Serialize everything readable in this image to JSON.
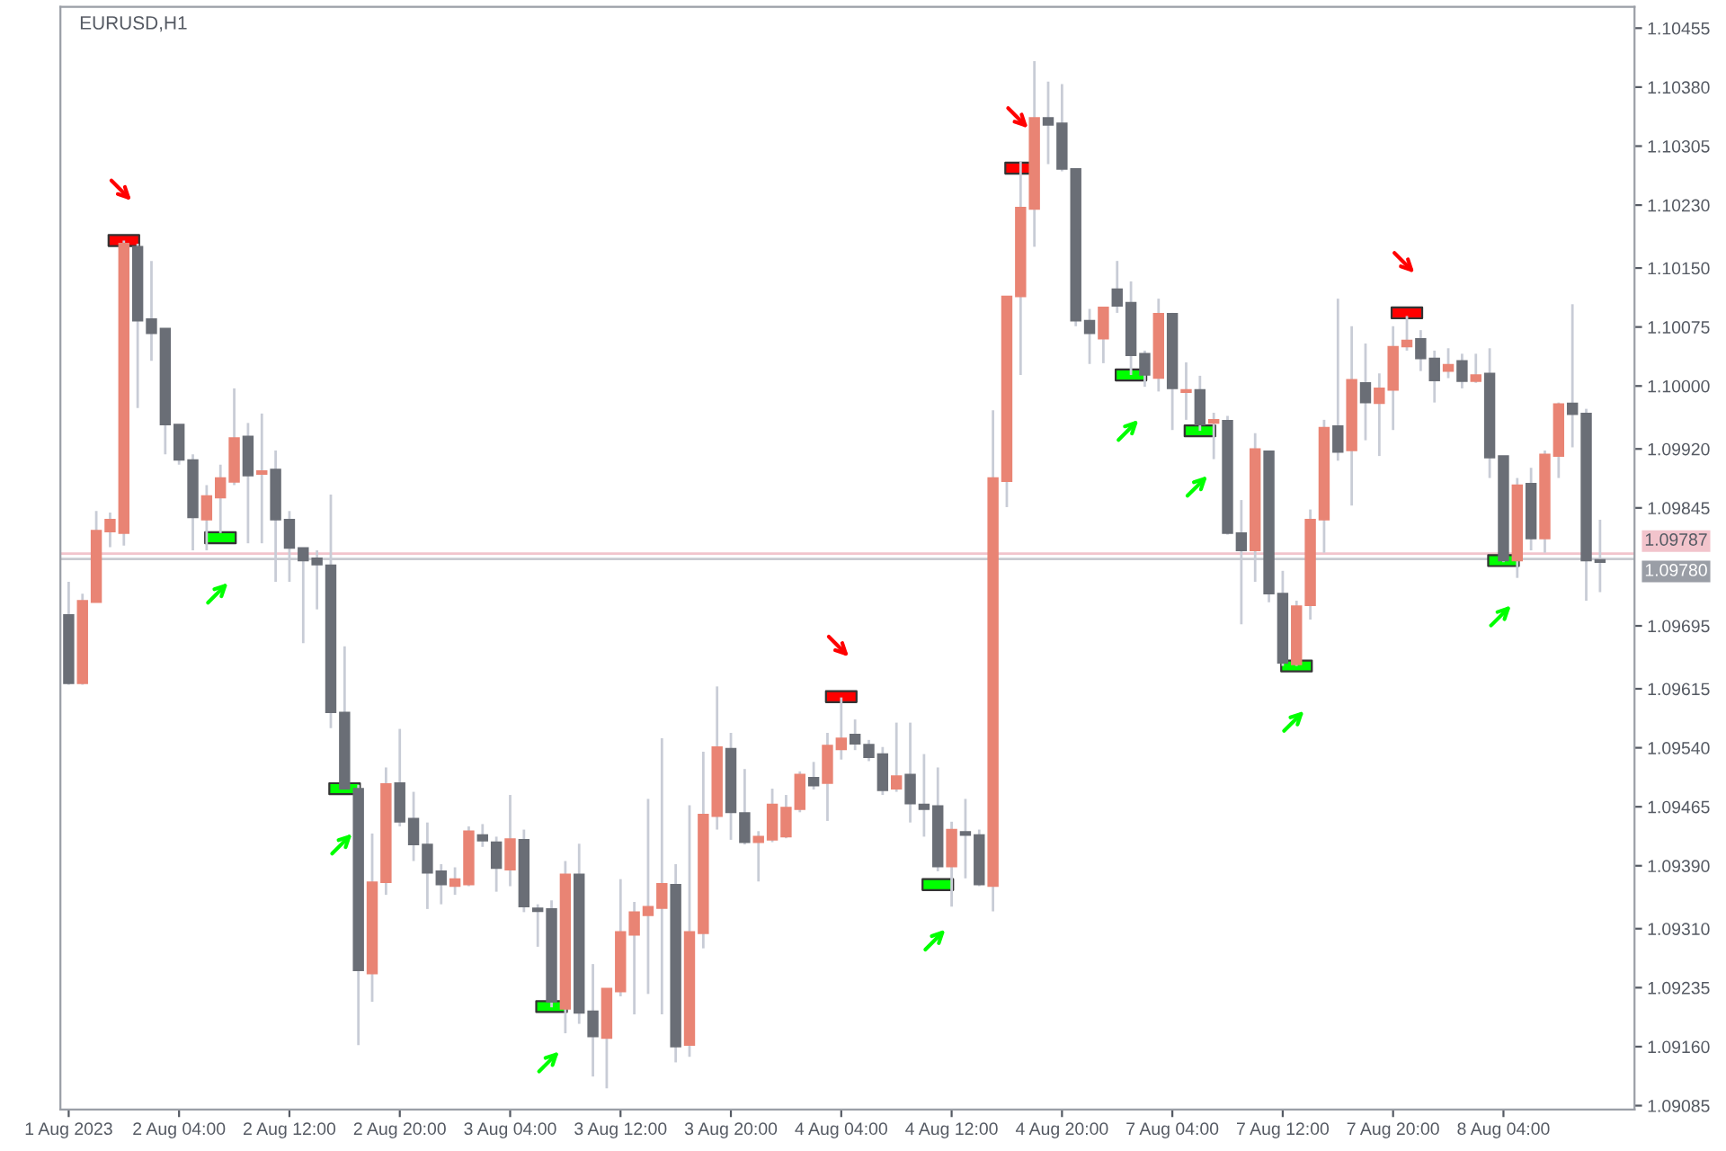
{
  "chart_data": {
    "type": "candlestick",
    "title": "EURUSD,H1",
    "categories": [
      "1 Aug 2023",
      null,
      null,
      null,
      null,
      null,
      null,
      null,
      "2 Aug 04:00",
      null,
      null,
      null,
      null,
      null,
      null,
      null,
      "2 Aug 12:00",
      null,
      null,
      null,
      null,
      null,
      null,
      null,
      "2 Aug 20:00",
      null,
      null,
      null,
      null,
      null,
      null,
      null,
      "3 Aug 04:00",
      null,
      null,
      null,
      null,
      null,
      null,
      null,
      "3 Aug 12:00",
      null,
      null,
      null,
      null,
      null,
      null,
      null,
      "3 Aug 20:00",
      null,
      null,
      null,
      null,
      null,
      null,
      null,
      "4 Aug 04:00",
      null,
      null,
      null,
      null,
      null,
      null,
      null,
      "4 Aug 12:00",
      null,
      null,
      null,
      null,
      null,
      null,
      null,
      "4 Aug 20:00",
      null,
      null,
      null,
      null,
      null,
      null,
      null,
      "7 Aug 04:00",
      null,
      null,
      null,
      null,
      null,
      null,
      null,
      "7 Aug 12:00",
      null,
      null,
      null,
      null,
      null,
      null,
      null,
      "7 Aug 20:00",
      null,
      null,
      null,
      null,
      null,
      null,
      null,
      "8 Aug 04:00",
      null,
      null,
      null,
      null,
      null,
      null,
      null
    ],
    "ohlc": [
      [
        1.09709,
        1.09751,
        1.0962,
        1.09622
      ],
      [
        1.09622,
        1.09736,
        1.0962,
        1.09727
      ],
      [
        1.09725,
        1.09841,
        1.09725,
        1.09816
      ],
      [
        1.09815,
        1.09839,
        1.09795,
        1.0983
      ],
      [
        1.09813,
        1.10185,
        1.09797,
        1.10181
      ],
      [
        1.10177,
        1.10181,
        1.09972,
        1.10083
      ],
      [
        1.10085,
        1.10159,
        1.10032,
        1.10067
      ],
      [
        1.10073,
        1.10073,
        1.09913,
        1.09951
      ],
      [
        1.09951,
        1.09951,
        1.099,
        1.09906
      ],
      [
        1.09906,
        1.09913,
        1.09791,
        1.09833
      ],
      [
        1.0983,
        1.09874,
        1.09791,
        1.0986
      ],
      [
        1.09858,
        1.099,
        1.09813,
        1.09883
      ],
      [
        1.09878,
        1.09997,
        1.09874,
        1.09934
      ],
      [
        1.09936,
        1.09953,
        1.098,
        1.09886
      ],
      [
        1.09888,
        1.09965,
        1.098,
        1.09892
      ],
      [
        1.09894,
        1.09918,
        1.09751,
        1.0983
      ],
      [
        1.0983,
        1.09841,
        1.09751,
        1.09794
      ],
      [
        1.09794,
        1.09794,
        1.09673,
        1.09778
      ],
      [
        1.09781,
        1.09791,
        1.09716,
        1.09773
      ],
      [
        1.09772,
        1.09862,
        1.09565,
        1.09585
      ],
      [
        1.09585,
        1.09669,
        1.09488,
        1.09488
      ],
      [
        1.09488,
        1.09493,
        1.09162,
        1.09257
      ],
      [
        1.09253,
        1.09431,
        1.09217,
        1.09369
      ],
      [
        1.09369,
        1.09515,
        1.09353,
        1.09494
      ],
      [
        1.09495,
        1.09564,
        1.0944,
        1.09446
      ],
      [
        1.0945,
        1.09484,
        1.09396,
        1.09417
      ],
      [
        1.09417,
        1.09445,
        1.09335,
        1.09381
      ],
      [
        1.09383,
        1.09392,
        1.09341,
        1.09366
      ],
      [
        1.09364,
        1.09388,
        1.09353,
        1.09373
      ],
      [
        1.09366,
        1.0944,
        1.09364,
        1.09434
      ],
      [
        1.09429,
        1.09443,
        1.09414,
        1.09422
      ],
      [
        1.0942,
        1.09427,
        1.09357,
        1.09387
      ],
      [
        1.09385,
        1.0948,
        1.09364,
        1.09424
      ],
      [
        1.09423,
        1.09436,
        1.09331,
        1.09338
      ],
      [
        1.09336,
        1.09341,
        1.09287,
        1.09332
      ],
      [
        1.09335,
        1.09346,
        1.0921,
        1.09217
      ],
      [
        1.09208,
        1.09396,
        1.09177,
        1.09379
      ],
      [
        1.09379,
        1.09418,
        1.09189,
        1.09203
      ],
      [
        1.09205,
        1.09265,
        1.09122,
        1.09173
      ],
      [
        1.09171,
        1.09234,
        1.09107,
        1.09234
      ],
      [
        1.0923,
        1.09373,
        1.09224,
        1.09306
      ],
      [
        1.09302,
        1.09344,
        1.09201,
        1.09331
      ],
      [
        1.09327,
        1.09475,
        1.09227,
        1.09338
      ],
      [
        1.09336,
        1.09552,
        1.09201,
        1.09367
      ],
      [
        1.09366,
        1.09392,
        1.0914,
        1.0916
      ],
      [
        1.09162,
        1.09467,
        1.09147,
        1.09306
      ],
      [
        1.09304,
        1.09535,
        1.09285,
        1.09455
      ],
      [
        1.09453,
        1.09618,
        1.09436,
        1.09541
      ],
      [
        1.09539,
        1.09559,
        1.09423,
        1.09458
      ],
      [
        1.09457,
        1.09513,
        1.09417,
        1.0942
      ],
      [
        1.0942,
        1.09434,
        1.0937,
        1.09427
      ],
      [
        1.09423,
        1.09488,
        1.0942,
        1.09468
      ],
      [
        1.09427,
        1.0948,
        1.09425,
        1.09464
      ],
      [
        1.09462,
        1.0951,
        1.09458,
        1.09506
      ],
      [
        1.09502,
        1.09522,
        1.09487,
        1.09492
      ],
      [
        1.09495,
        1.09559,
        1.09447,
        1.09543
      ],
      [
        1.09538,
        1.09604,
        1.09525,
        1.09552
      ],
      [
        1.09557,
        1.09576,
        1.09537,
        1.09545
      ],
      [
        1.09544,
        1.0955,
        1.09523,
        1.09528
      ],
      [
        1.09532,
        1.09541,
        1.0948,
        1.09486
      ],
      [
        1.09488,
        1.09572,
        1.09484,
        1.09504
      ],
      [
        1.09506,
        1.09572,
        1.09445,
        1.09469
      ],
      [
        1.09468,
        1.09532,
        1.09427,
        1.09462
      ],
      [
        1.09466,
        1.09515,
        1.09383,
        1.09389
      ],
      [
        1.09389,
        1.09446,
        1.09338,
        1.09436
      ],
      [
        1.09433,
        1.09475,
        1.09374,
        1.09429
      ],
      [
        1.09429,
        1.09436,
        1.09364,
        1.09366
      ],
      [
        1.09364,
        1.09969,
        1.09332,
        1.09883
      ],
      [
        1.09879,
        1.10114,
        1.09846,
        1.10114
      ],
      [
        1.10114,
        1.10286,
        1.10014,
        1.10227
      ],
      [
        1.10225,
        1.10413,
        1.10177,
        1.10341
      ],
      [
        1.10341,
        1.10387,
        1.10282,
        1.10332
      ],
      [
        1.10334,
        1.10384,
        1.10273,
        1.10276
      ],
      [
        1.10276,
        1.10277,
        1.10076,
        1.10083
      ],
      [
        1.10083,
        1.10098,
        1.10028,
        1.10067
      ],
      [
        1.1006,
        1.101,
        1.10029,
        1.101
      ],
      [
        1.10123,
        1.10159,
        1.10093,
        1.10102
      ],
      [
        1.10106,
        1.10133,
        1.10014,
        1.10039
      ],
      [
        1.10041,
        1.10045,
        1.09999,
        1.10014
      ],
      [
        1.1001,
        1.10111,
        1.09993,
        1.10092
      ],
      [
        1.10092,
        1.10093,
        1.09944,
        1.09997
      ],
      [
        1.09992,
        1.1003,
        1.09957,
        1.09995
      ],
      [
        1.09995,
        1.10013,
        1.09943,
        1.09951
      ],
      [
        1.09953,
        1.09966,
        1.09907,
        1.09957
      ],
      [
        1.09956,
        1.09962,
        1.09811,
        1.09813
      ],
      [
        1.09813,
        1.09855,
        1.09697,
        1.09791
      ],
      [
        1.09791,
        1.0994,
        1.09751,
        1.0992
      ],
      [
        1.09917,
        1.09917,
        1.09725,
        1.09736
      ],
      [
        1.09736,
        1.09765,
        1.09644,
        1.09648
      ],
      [
        1.09646,
        1.09727,
        1.09644,
        1.0972
      ],
      [
        1.09721,
        1.09843,
        1.09703,
        1.0983
      ],
      [
        1.0983,
        1.09957,
        1.09788,
        1.09947
      ],
      [
        1.09949,
        1.10111,
        1.09905,
        1.09916
      ],
      [
        1.09918,
        1.10076,
        1.09848,
        1.10008
      ],
      [
        1.10004,
        1.10054,
        1.09931,
        1.09979
      ],
      [
        1.09978,
        1.10016,
        1.09911,
        1.09997
      ],
      [
        1.09995,
        1.10076,
        1.09944,
        1.1005
      ],
      [
        1.1005,
        1.10089,
        1.10045,
        1.10058
      ],
      [
        1.1006,
        1.10071,
        1.10019,
        1.10035
      ],
      [
        1.10035,
        1.10045,
        1.09979,
        1.10007
      ],
      [
        1.10019,
        1.10048,
        1.1001,
        1.10027
      ],
      [
        1.10032,
        1.10041,
        1.09997,
        1.10006
      ],
      [
        1.10006,
        1.10041,
        1.10004,
        1.10014
      ],
      [
        1.10016,
        1.10048,
        1.09883,
        1.09909
      ],
      [
        1.09911,
        1.09911,
        1.09776,
        1.09778
      ],
      [
        1.09778,
        1.09883,
        1.09756,
        1.09874
      ],
      [
        1.09876,
        1.09896,
        1.09791,
        1.09806
      ],
      [
        1.09806,
        1.09918,
        1.09788,
        1.09913
      ],
      [
        1.09911,
        1.09979,
        1.09883,
        1.09977
      ],
      [
        1.09978,
        1.10104,
        1.09922,
        1.09964
      ],
      [
        1.09965,
        1.09971,
        1.09727,
        1.09778
      ],
      [
        1.09779,
        1.0983,
        1.09738,
        1.09776
      ]
    ],
    "colors": [
      "#6a6e76",
      "#e98474",
      "#e98474",
      "#e98474",
      "#e98474",
      "#6a6e76",
      "#6a6e76",
      "#6a6e76",
      "#6a6e76",
      "#6a6e76",
      "#e98474",
      "#e98474",
      "#e98474",
      "#6a6e76",
      "#e98474",
      "#6a6e76",
      "#6a6e76",
      "#6a6e76",
      "#6a6e76",
      "#6a6e76",
      "#6a6e76",
      "#6a6e76",
      "#e98474",
      "#e98474",
      "#6a6e76",
      "#6a6e76",
      "#6a6e76",
      "#6a6e76",
      "#e98474",
      "#e98474",
      "#6a6e76",
      "#6a6e76",
      "#e98474",
      "#6a6e76",
      "#6a6e76",
      "#6a6e76",
      "#e98474",
      "#6a6e76",
      "#6a6e76",
      "#e98474",
      "#e98474",
      "#e98474",
      "#e98474",
      "#e98474",
      "#6a6e76",
      "#e98474",
      "#e98474",
      "#e98474",
      "#6a6e76",
      "#6a6e76",
      "#e98474",
      "#e98474",
      "#e98474",
      "#e98474",
      "#6a6e76",
      "#e98474",
      "#e98474",
      "#6a6e76",
      "#6a6e76",
      "#6a6e76",
      "#e98474",
      "#6a6e76",
      "#6a6e76",
      "#6a6e76",
      "#e98474",
      "#6a6e76",
      "#6a6e76",
      "#e98474",
      "#e98474",
      "#e98474",
      "#e98474",
      "#6a6e76",
      "#6a6e76",
      "#6a6e76",
      "#6a6e76",
      "#e98474",
      "#6a6e76",
      "#6a6e76",
      "#6a6e76",
      "#e98474",
      "#6a6e76",
      "#e98474",
      "#6a6e76",
      "#e98474",
      "#6a6e76",
      "#6a6e76",
      "#e98474",
      "#6a6e76",
      "#6a6e76",
      "#e98474",
      "#e98474",
      "#e98474",
      "#6a6e76",
      "#e98474",
      "#6a6e76",
      "#e98474",
      "#e98474",
      "#e98474",
      "#6a6e76",
      "#6a6e76",
      "#e98474",
      "#6a6e76",
      "#e98474",
      "#6a6e76",
      "#6a6e76",
      "#e98474",
      "#6a6e76",
      "#e98474",
      "#e98474",
      "#6a6e76",
      "#6a6e76",
      "#6a6e76"
    ],
    "series": [
      {
        "type": "scatter",
        "color": "#ff0000",
        "marker": "square",
        "values": [
          null,
          null,
          null,
          null,
          1.10185,
          null,
          null,
          null,
          null,
          null,
          null,
          null,
          null,
          null,
          null,
          null,
          null,
          null,
          null,
          null,
          null,
          null,
          null,
          null,
          null,
          null,
          null,
          null,
          null,
          null,
          null,
          null,
          null,
          null,
          null,
          null,
          null,
          null,
          null,
          null,
          null,
          null,
          null,
          null,
          null,
          null,
          null,
          null,
          null,
          null,
          null,
          null,
          null,
          null,
          null,
          null,
          1.09605,
          null,
          null,
          null,
          null,
          null,
          null,
          null,
          null,
          null,
          null,
          null,
          null,
          1.10277,
          null,
          null,
          null,
          null,
          null,
          null,
          null,
          null,
          null,
          null,
          null,
          null,
          null,
          null,
          null,
          null,
          null,
          null,
          null,
          null,
          null,
          null,
          null,
          null,
          null,
          null,
          null,
          1.10093,
          null,
          null,
          null,
          null,
          null,
          null,
          null,
          null,
          null,
          null,
          null,
          null,
          null,
          null
        ]
      },
      {
        "type": "scatter",
        "color": "#00ff00",
        "marker": "square",
        "values": [
          null,
          null,
          null,
          null,
          null,
          null,
          null,
          null,
          null,
          null,
          null,
          1.09807,
          null,
          null,
          null,
          null,
          null,
          null,
          null,
          null,
          1.09488,
          null,
          null,
          null,
          null,
          null,
          null,
          null,
          null,
          null,
          null,
          null,
          null,
          null,
          null,
          1.09211,
          null,
          null,
          null,
          null,
          null,
          null,
          null,
          null,
          null,
          null,
          null,
          null,
          null,
          null,
          null,
          null,
          null,
          null,
          null,
          null,
          null,
          null,
          null,
          null,
          null,
          null,
          null,
          1.09366,
          null,
          null,
          null,
          null,
          null,
          null,
          null,
          null,
          null,
          null,
          null,
          null,
          null,
          1.10014,
          null,
          null,
          null,
          null,
          1.09943,
          null,
          null,
          null,
          null,
          null,
          null,
          1.09644,
          null,
          null,
          null,
          null,
          null,
          null,
          null,
          null,
          null,
          null,
          null,
          null,
          null,
          null,
          1.09778,
          null,
          null,
          null,
          null,
          null,
          null,
          null
        ]
      }
    ],
    "ylim": [
      1.0908,
      1.10482
    ],
    "yticks": [
      {
        "value": 1.09085,
        "label": "1.09085"
      },
      {
        "value": 1.0916,
        "label": "1.09160"
      },
      {
        "value": 1.09235,
        "label": "1.09235"
      },
      {
        "value": 1.0931,
        "label": "1.09310"
      },
      {
        "value": 1.0939,
        "label": "1.09390"
      },
      {
        "value": 1.09465,
        "label": "1.09465"
      },
      {
        "value": 1.0954,
        "label": "1.09540"
      },
      {
        "value": 1.09615,
        "label": "1.09615"
      },
      {
        "value": 1.09695,
        "label": "1.09695"
      },
      {
        "value": 1.09845,
        "label": "1.09845"
      },
      {
        "value": 1.0992,
        "label": "1.09920"
      },
      {
        "value": 1.1,
        "label": "1.10000"
      },
      {
        "value": 1.10075,
        "label": "1.10075"
      },
      {
        "value": 1.1015,
        "label": "1.10150"
      },
      {
        "value": 1.1023,
        "label": "1.10230"
      },
      {
        "value": 1.10305,
        "label": "1.10305"
      },
      {
        "value": 1.1038,
        "label": "1.10380"
      },
      {
        "value": 1.10455,
        "label": "1.10455"
      }
    ],
    "ref_lines": [
      {
        "axis": "y",
        "value": 1.09787,
        "label": "1.09787",
        "color": "#f2c4cc"
      },
      {
        "axis": "y",
        "value": 1.0978,
        "label": "1.09780",
        "color": "#c8cad0"
      }
    ]
  }
}
